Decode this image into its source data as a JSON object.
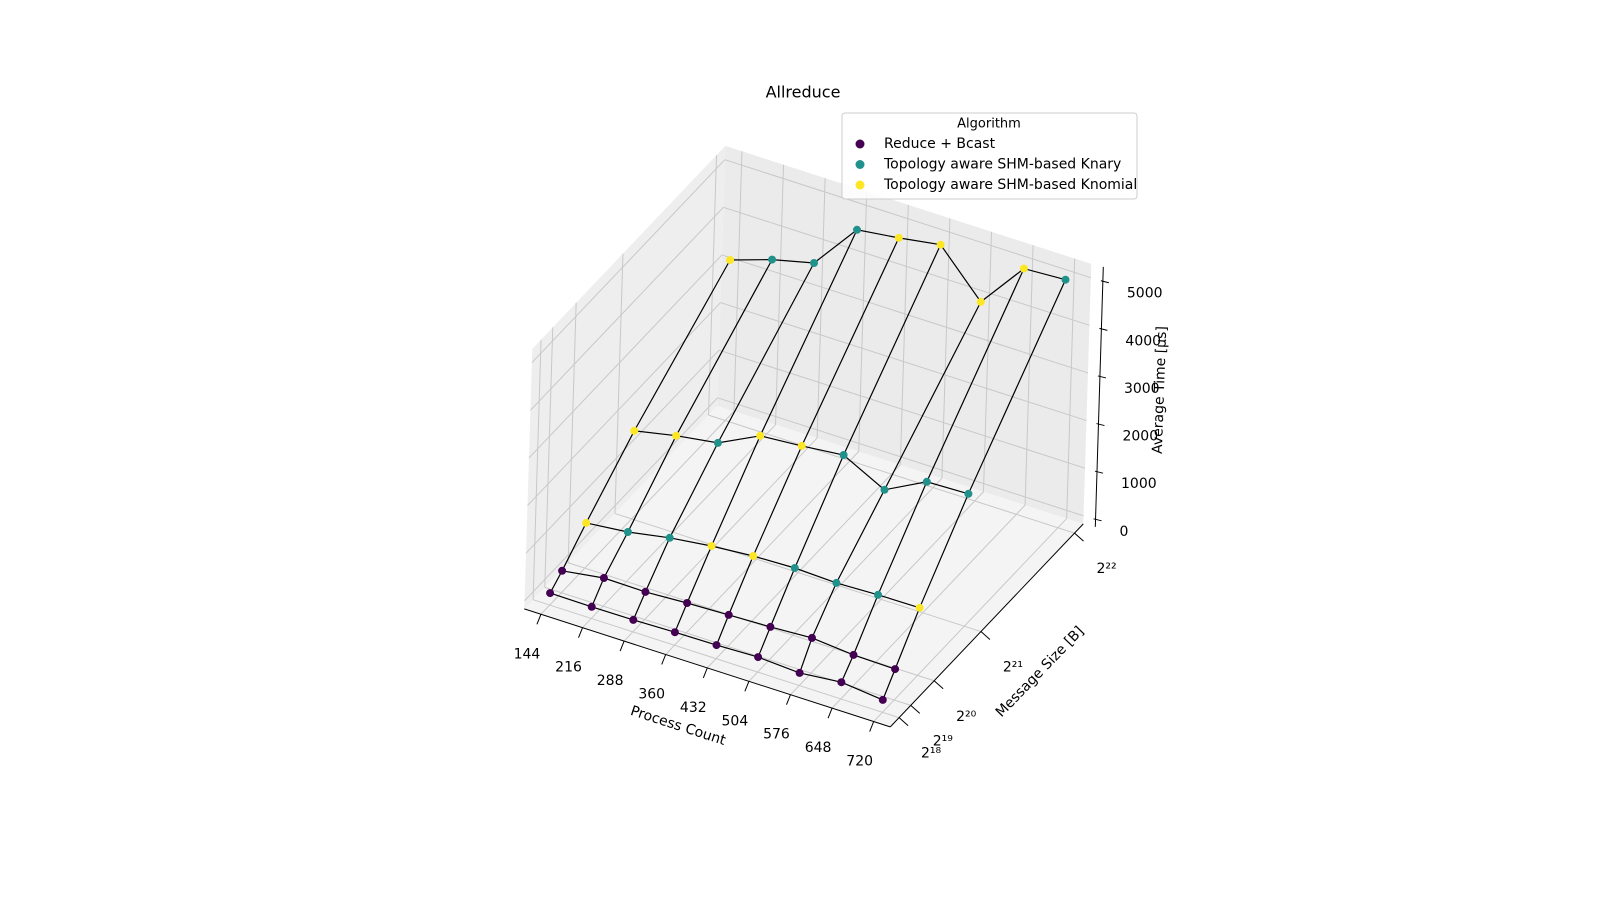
{
  "chart_data": {
    "type": "scatter3d",
    "title": "Allreduce",
    "xlabel": "Process Count",
    "ylabel": "Message Size [B]",
    "zlabel": "Average Time [µs]",
    "legend_title": "Algorithm",
    "legend_loc": "upper right",
    "wireframe_color": "#000000",
    "grid": true,
    "xlim": [
      115.2,
      748.8
    ],
    "xticks": [
      144,
      216,
      288,
      360,
      432,
      504,
      576,
      648,
      720
    ],
    "ylim": [
      65536,
      4390912
    ],
    "yticks": [
      {
        "value": 262144,
        "label": "2¹⁸"
      },
      {
        "value": 524288,
        "label": "2¹⁹"
      },
      {
        "value": 1048576,
        "label": "2²⁰"
      },
      {
        "value": 2097152,
        "label": "2²¹"
      },
      {
        "value": 4194304,
        "label": "2²²"
      }
    ],
    "zlim": [
      -170,
      5290
    ],
    "zticks": [
      0,
      1000,
      2000,
      3000,
      4000,
      5000
    ],
    "series": [
      {
        "name": "Reduce + Bcast",
        "color": "#440154",
        "x": [
          144,
          216,
          288,
          360,
          432,
          504,
          576,
          648,
          720,
          144,
          216,
          288,
          360,
          432,
          504,
          576,
          648,
          720
        ],
        "y": [
          262144,
          262144,
          262144,
          262144,
          262144,
          262144,
          262144,
          262144,
          262144,
          524288,
          524288,
          524288,
          524288,
          524288,
          524288,
          524288,
          524288,
          524288
        ],
        "values": [
          80,
          75,
          80,
          105,
          115,
          145,
          95,
          180,
          90,
          290,
          420,
          410,
          460,
          490,
          520,
          570,
          495,
          480
        ]
      },
      {
        "name": "Topology aware SHM-based Knary",
        "color": "#21918c",
        "x": [
          216,
          288,
          504,
          576,
          648,
          288,
          504,
          576,
          648,
          720,
          216,
          288,
          360,
          720
        ],
        "y": [
          1048576,
          1048576,
          1048576,
          1048576,
          1048576,
          2097152,
          2097152,
          2097152,
          2097152,
          2097152,
          4194304,
          4194304,
          4194304,
          4194304
        ],
        "values": [
          870,
          1030,
          1240,
          1210,
          1240,
          1990,
          2580,
          2130,
          2580,
          2610,
          3490,
          3700,
          4680,
          5040
        ]
      },
      {
        "name": "Topology aware SHM-based Knomial",
        "color": "#fde725",
        "x": [
          144,
          360,
          432,
          720,
          144,
          216,
          360,
          432,
          144,
          432,
          504,
          576,
          648
        ],
        "y": [
          1048576,
          1048576,
          1048576,
          1048576,
          2097152,
          2097152,
          2097152,
          2097152,
          4194304,
          4194304,
          4194304,
          4194304,
          4194304
        ],
        "values": [
          780,
          1140,
          1210,
          1250,
          1680,
          1860,
          2420,
          2490,
          3200,
          4790,
          4930,
          4010,
          4990
        ]
      }
    ]
  }
}
